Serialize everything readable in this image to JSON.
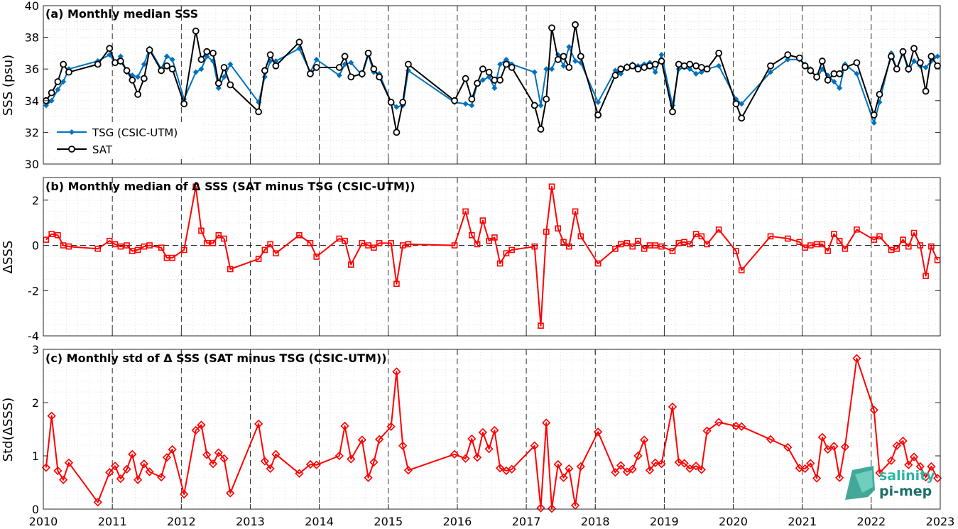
{
  "xaxis": {
    "range": [
      2010,
      2023
    ],
    "ticks": [
      "2010",
      "2011",
      "2012",
      "2013",
      "2014",
      "2015",
      "2016",
      "2017",
      "2018",
      "2019",
      "2020",
      "2021",
      "2022",
      "2023"
    ]
  },
  "logo": {
    "line1": "salinity",
    "line2": "pi-mep"
  },
  "chart_data": [
    {
      "type": "line",
      "title": "(a) Monthly median SSS",
      "ylabel": "SSS (psu)",
      "ylim": [
        30,
        40
      ],
      "yticks": [
        "30",
        "32",
        "34",
        "36",
        "38",
        "40"
      ],
      "grid": true,
      "legend_position": "bottom-left",
      "series": [
        {
          "name": "TSG (CSIC-UTM)",
          "color": "#0072BD",
          "marker": "filled-diamond",
          "x": [
            2010.04,
            2010.12,
            2010.21,
            2010.29,
            2010.37,
            2010.79,
            2010.96,
            2011.04,
            2011.12,
            2011.21,
            2011.29,
            2011.37,
            2011.46,
            2011.54,
            2011.71,
            2011.79,
            2011.87,
            2012.04,
            2012.21,
            2012.29,
            2012.37,
            2012.46,
            2012.54,
            2012.62,
            2012.71,
            2013.12,
            2013.21,
            2013.29,
            2013.37,
            2013.71,
            2013.87,
            2013.96,
            2014.29,
            2014.37,
            2014.46,
            2014.62,
            2014.71,
            2014.79,
            2014.87,
            2015.04,
            2015.12,
            2015.21,
            2015.29,
            2015.96,
            2016.12,
            2016.21,
            2016.29,
            2016.37,
            2016.46,
            2016.54,
            2016.62,
            2016.71,
            2016.79,
            2017.12,
            2017.21,
            2017.29,
            2017.37,
            2017.46,
            2017.54,
            2017.62,
            2017.71,
            2017.79,
            2018.04,
            2018.29,
            2018.37,
            2018.46,
            2018.54,
            2018.62,
            2018.71,
            2018.79,
            2018.87,
            2018.96,
            2019.12,
            2019.21,
            2019.29,
            2019.37,
            2019.46,
            2019.54,
            2019.62,
            2019.79,
            2020.04,
            2020.12,
            2020.54,
            2020.79,
            2020.96,
            2021.04,
            2021.12,
            2021.21,
            2021.29,
            2021.37,
            2021.46,
            2021.54,
            2021.62,
            2021.79,
            2022.04,
            2022.12,
            2022.29,
            2022.37,
            2022.46,
            2022.54,
            2022.62,
            2022.71,
            2022.79,
            2022.87,
            2022.96
          ],
          "y": [
            33.7,
            34.0,
            34.7,
            35.2,
            36.0,
            36.5,
            36.9,
            36.4,
            36.8,
            35.8,
            35.6,
            35.5,
            36.3,
            37.3,
            36.0,
            36.8,
            36.6,
            34.1,
            35.8,
            36.0,
            36.8,
            36.5,
            34.8,
            35.5,
            36.3,
            33.9,
            35.5,
            36.5,
            36.5,
            37.3,
            35.8,
            36.6,
            35.6,
            36.3,
            36.4,
            35.6,
            36.9,
            35.8,
            35.7,
            33.9,
            33.6,
            33.7,
            35.9,
            33.9,
            33.8,
            33.7,
            35.1,
            35.3,
            35.5,
            34.8,
            36.3,
            36.6,
            36.3,
            35.8,
            33.7,
            36.0,
            36.0,
            36.9,
            36.2,
            37.4,
            36.5,
            36.4,
            33.9,
            35.9,
            35.7,
            36.2,
            36.3,
            36.2,
            36.3,
            36.4,
            35.8,
            36.9,
            33.7,
            36.0,
            36.1,
            36.0,
            35.7,
            35.8,
            36.0,
            36.2,
            34.1,
            33.8,
            35.8,
            36.6,
            36.6,
            36.3,
            36.0,
            35.4,
            36.0,
            35.6,
            35.2,
            34.8,
            36.3,
            35.7,
            32.6,
            33.9,
            37.0,
            36.0,
            37.0,
            35.9,
            36.5,
            36.2,
            36.1,
            36.5,
            36.8
          ]
        },
        {
          "name": "SAT",
          "color": "#000000",
          "marker": "open-circle",
          "x": [
            2010.04,
            2010.12,
            2010.21,
            2010.29,
            2010.37,
            2010.79,
            2010.96,
            2011.04,
            2011.12,
            2011.21,
            2011.29,
            2011.37,
            2011.46,
            2011.54,
            2011.71,
            2011.79,
            2011.87,
            2012.04,
            2012.21,
            2012.29,
            2012.37,
            2012.46,
            2012.54,
            2012.62,
            2012.71,
            2013.12,
            2013.21,
            2013.29,
            2013.37,
            2013.71,
            2013.87,
            2013.96,
            2014.29,
            2014.37,
            2014.46,
            2014.62,
            2014.71,
            2014.79,
            2014.87,
            2015.04,
            2015.12,
            2015.21,
            2015.29,
            2015.96,
            2016.12,
            2016.21,
            2016.29,
            2016.37,
            2016.46,
            2016.54,
            2016.62,
            2016.71,
            2016.79,
            2017.12,
            2017.21,
            2017.29,
            2017.37,
            2017.46,
            2017.54,
            2017.62,
            2017.71,
            2017.79,
            2018.04,
            2018.29,
            2018.37,
            2018.46,
            2018.54,
            2018.62,
            2018.71,
            2018.79,
            2018.87,
            2018.96,
            2019.12,
            2019.21,
            2019.29,
            2019.37,
            2019.46,
            2019.54,
            2019.62,
            2019.79,
            2020.04,
            2020.12,
            2020.54,
            2020.79,
            2020.96,
            2021.04,
            2021.12,
            2021.21,
            2021.29,
            2021.37,
            2021.46,
            2021.54,
            2021.62,
            2021.79,
            2022.04,
            2022.12,
            2022.29,
            2022.37,
            2022.46,
            2022.54,
            2022.62,
            2022.71,
            2022.79,
            2022.87,
            2022.96
          ],
          "y": [
            34.0,
            34.5,
            35.2,
            36.3,
            35.8,
            36.3,
            37.3,
            36.4,
            36.5,
            35.9,
            35.3,
            34.4,
            35.4,
            37.2,
            35.9,
            36.2,
            36.0,
            33.8,
            38.4,
            36.6,
            37.1,
            37.0,
            35.1,
            36.1,
            35.0,
            33.3,
            35.9,
            36.9,
            36.2,
            37.7,
            35.7,
            36.1,
            36.1,
            36.8,
            35.5,
            35.7,
            37.0,
            36.0,
            35.5,
            33.9,
            32.0,
            33.9,
            36.3,
            34.0,
            35.4,
            34.1,
            35.1,
            36.0,
            35.8,
            35.3,
            35.3,
            36.3,
            36.1,
            33.7,
            32.2,
            34.1,
            38.6,
            36.6,
            36.8,
            36.1,
            38.8,
            36.8,
            33.1,
            35.6,
            36.0,
            36.1,
            36.2,
            36.0,
            36.1,
            36.2,
            36.3,
            36.5,
            33.3,
            36.3,
            36.2,
            36.3,
            36.2,
            36.1,
            36.0,
            37.0,
            33.8,
            32.9,
            36.2,
            36.9,
            36.7,
            36.2,
            35.9,
            35.5,
            36.5,
            35.3,
            35.7,
            35.7,
            36.1,
            36.4,
            33.1,
            34.4,
            36.8,
            36.0,
            37.1,
            36.0,
            37.3,
            36.4,
            34.6,
            36.8,
            36.2
          ]
        }
      ]
    },
    {
      "type": "line",
      "title": "(b) Monthly median of Δ SSS (SAT minus TSG (CSIC-UTM))",
      "ylabel": "ΔSSS",
      "ylim": [
        -4,
        3
      ],
      "yticks": [
        "-4",
        "-2",
        "0",
        "2"
      ],
      "grid": true,
      "series": [
        {
          "color": "#FF0000",
          "marker": "open-square",
          "x": [
            2010.04,
            2010.12,
            2010.21,
            2010.29,
            2010.37,
            2010.79,
            2010.96,
            2011.04,
            2011.12,
            2011.21,
            2011.29,
            2011.37,
            2011.46,
            2011.54,
            2011.71,
            2011.79,
            2011.87,
            2012.04,
            2012.21,
            2012.29,
            2012.37,
            2012.46,
            2012.54,
            2012.62,
            2012.71,
            2013.12,
            2013.21,
            2013.29,
            2013.37,
            2013.71,
            2013.87,
            2013.96,
            2014.29,
            2014.37,
            2014.46,
            2014.62,
            2014.71,
            2014.79,
            2014.87,
            2015.04,
            2015.12,
            2015.21,
            2015.29,
            2015.96,
            2016.12,
            2016.21,
            2016.29,
            2016.37,
            2016.46,
            2016.54,
            2016.62,
            2016.71,
            2016.79,
            2017.12,
            2017.21,
            2017.29,
            2017.37,
            2017.46,
            2017.54,
            2017.62,
            2017.71,
            2017.79,
            2018.04,
            2018.29,
            2018.37,
            2018.46,
            2018.54,
            2018.62,
            2018.71,
            2018.79,
            2018.87,
            2018.96,
            2019.12,
            2019.21,
            2019.29,
            2019.37,
            2019.46,
            2019.54,
            2019.62,
            2019.79,
            2020.04,
            2020.12,
            2020.54,
            2020.79,
            2020.96,
            2021.04,
            2021.12,
            2021.21,
            2021.29,
            2021.37,
            2021.46,
            2021.54,
            2021.62,
            2021.79,
            2022.04,
            2022.12,
            2022.29,
            2022.37,
            2022.46,
            2022.54,
            2022.62,
            2022.71,
            2022.79,
            2022.87,
            2022.96
          ],
          "y": [
            0.25,
            0.5,
            0.45,
            0.0,
            -0.05,
            -0.15,
            0.2,
            0.05,
            -0.05,
            0.0,
            -0.25,
            -0.2,
            -0.05,
            0.0,
            -0.1,
            -0.55,
            -0.55,
            -0.2,
            2.6,
            0.65,
            0.1,
            0.1,
            0.45,
            0.3,
            -1.05,
            -0.6,
            -0.2,
            0.05,
            -0.35,
            0.45,
            0.1,
            -0.5,
            0.3,
            0.2,
            -0.85,
            0.1,
            0.0,
            -0.1,
            0.1,
            0.1,
            -1.7,
            0.0,
            0.05,
            0.0,
            1.5,
            0.45,
            0.05,
            1.1,
            0.2,
            0.35,
            -0.8,
            -0.35,
            -0.2,
            -0.05,
            -3.55,
            0.6,
            2.6,
            0.75,
            0.15,
            -0.05,
            1.5,
            0.4,
            -0.8,
            -0.15,
            0.05,
            0.1,
            -0.05,
            0.2,
            -0.15,
            0.0,
            0.0,
            -0.05,
            -0.25,
            0.1,
            0.15,
            0.05,
            0.5,
            0.4,
            0.05,
            0.7,
            -0.25,
            -1.1,
            0.4,
            0.3,
            0.15,
            -0.1,
            0.0,
            0.05,
            0.05,
            -0.25,
            0.5,
            0.2,
            -0.15,
            0.7,
            0.25,
            0.4,
            -0.2,
            -0.15,
            0.25,
            -0.05,
            0.55,
            0.0,
            -1.35,
            -0.05,
            -0.65
          ]
        }
      ]
    },
    {
      "type": "line",
      "title": "(c) Monthly std of Δ SSS (SAT minus TSG (CSIC-UTM))",
      "ylabel": "Std(ΔSSS)",
      "ylim": [
        0,
        3
      ],
      "yticks": [
        "0",
        "1",
        "2",
        "3"
      ],
      "grid": true,
      "series": [
        {
          "color": "#FF0000",
          "marker": "open-diamond",
          "x": [
            2010.04,
            2010.12,
            2010.21,
            2010.29,
            2010.37,
            2010.79,
            2010.96,
            2011.04,
            2011.12,
            2011.21,
            2011.29,
            2011.37,
            2011.46,
            2011.54,
            2011.71,
            2011.79,
            2011.87,
            2012.04,
            2012.21,
            2012.29,
            2012.37,
            2012.46,
            2012.54,
            2012.62,
            2012.71,
            2013.12,
            2013.21,
            2013.29,
            2013.37,
            2013.71,
            2013.87,
            2013.96,
            2014.29,
            2014.37,
            2014.46,
            2014.62,
            2014.71,
            2014.79,
            2014.87,
            2015.04,
            2015.12,
            2015.21,
            2015.29,
            2015.96,
            2016.12,
            2016.21,
            2016.29,
            2016.37,
            2016.46,
            2016.54,
            2016.62,
            2016.71,
            2016.79,
            2017.12,
            2017.21,
            2017.29,
            2017.37,
            2017.46,
            2017.54,
            2017.62,
            2017.71,
            2017.79,
            2018.04,
            2018.29,
            2018.37,
            2018.46,
            2018.54,
            2018.62,
            2018.71,
            2018.79,
            2018.87,
            2018.96,
            2019.12,
            2019.21,
            2019.29,
            2019.37,
            2019.46,
            2019.54,
            2019.62,
            2019.79,
            2020.04,
            2020.12,
            2020.54,
            2020.79,
            2020.96,
            2021.04,
            2021.12,
            2021.21,
            2021.29,
            2021.37,
            2021.46,
            2021.54,
            2021.62,
            2021.79,
            2022.04,
            2022.12,
            2022.29,
            2022.37,
            2022.46,
            2022.54,
            2022.62,
            2022.71,
            2022.79,
            2022.87,
            2022.96
          ],
          "y": [
            0.78,
            1.75,
            0.72,
            0.55,
            0.87,
            0.13,
            0.69,
            0.81,
            0.57,
            0.75,
            1.03,
            0.55,
            0.85,
            0.7,
            0.6,
            0.97,
            1.12,
            0.28,
            1.48,
            1.58,
            1.02,
            0.85,
            1.06,
            0.95,
            0.3,
            1.6,
            0.9,
            0.76,
            1.03,
            0.67,
            0.84,
            0.83,
            1.0,
            1.56,
            0.94,
            1.3,
            0.59,
            0.88,
            1.31,
            1.55,
            2.58,
            1.19,
            0.73,
            1.03,
            0.95,
            1.32,
            0.97,
            1.44,
            1.13,
            1.48,
            0.77,
            0.72,
            0.75,
            1.19,
            0.02,
            1.62,
            0.01,
            0.84,
            0.59,
            0.76,
            0.07,
            0.8,
            1.45,
            0.69,
            0.82,
            0.7,
            0.75,
            1.0,
            1.3,
            0.73,
            0.87,
            0.85,
            1.92,
            0.88,
            0.86,
            0.76,
            0.81,
            0.74,
            1.47,
            1.63,
            1.56,
            1.55,
            1.31,
            1.16,
            0.77,
            0.76,
            0.86,
            0.58,
            1.35,
            1.12,
            1.18,
            0.59,
            1.17,
            2.83,
            1.86,
            0.68,
            0.91,
            1.19,
            1.28,
            0.83,
            0.98,
            0.8,
            0.6,
            0.8,
            0.58
          ]
        }
      ]
    }
  ]
}
